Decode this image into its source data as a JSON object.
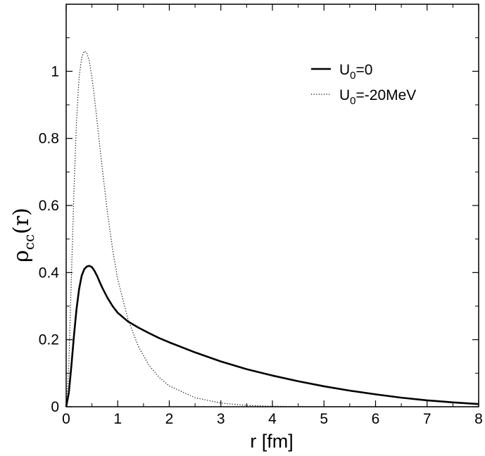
{
  "chart_data": {
    "type": "line",
    "xlabel": "r [fm]",
    "ylabel": {
      "main": "ρ",
      "sub": "cc",
      "arg": "(r)"
    },
    "xlim": [
      0,
      8
    ],
    "ylim": [
      0,
      1.2
    ],
    "xticks": [
      0,
      1,
      2,
      3,
      4,
      5,
      6,
      7,
      8
    ],
    "yticks": [
      0,
      0.2,
      0.4,
      0.6,
      0.8,
      1
    ],
    "ytick_labels": [
      "0",
      "0.2",
      "0.4",
      "0.6",
      "0.8",
      "1"
    ],
    "grid": false,
    "legend_position": "top-right",
    "series": [
      {
        "name": "U0=0",
        "legend": {
          "main": "U",
          "sub": "0",
          "rest": "=0"
        },
        "style": "solid",
        "color": "#000000",
        "x": [
          0,
          0.05,
          0.1,
          0.15,
          0.2,
          0.25,
          0.3,
          0.35,
          0.4,
          0.45,
          0.5,
          0.55,
          0.6,
          0.65,
          0.7,
          0.8,
          0.9,
          1.0,
          1.2,
          1.4,
          1.6,
          1.8,
          2.0,
          2.5,
          3.0,
          3.5,
          4.0,
          4.5,
          5.0,
          5.5,
          6.0,
          6.5,
          7.0,
          7.5,
          8.0
        ],
        "y": [
          0,
          0.04,
          0.12,
          0.21,
          0.29,
          0.35,
          0.39,
          0.41,
          0.418,
          0.42,
          0.416,
          0.405,
          0.39,
          0.372,
          0.355,
          0.325,
          0.3,
          0.28,
          0.254,
          0.236,
          0.22,
          0.205,
          0.192,
          0.162,
          0.135,
          0.112,
          0.093,
          0.076,
          0.061,
          0.048,
          0.037,
          0.027,
          0.019,
          0.013,
          0.008
        ]
      },
      {
        "name": "U0=-20MeV",
        "legend": {
          "main": "U",
          "sub": "0",
          "rest": "=-20MeV"
        },
        "style": "dotted",
        "color": "#000000",
        "x": [
          0,
          0.05,
          0.1,
          0.15,
          0.2,
          0.25,
          0.3,
          0.35,
          0.4,
          0.45,
          0.5,
          0.55,
          0.6,
          0.7,
          0.8,
          0.9,
          1.0,
          1.2,
          1.4,
          1.6,
          1.8,
          2.0,
          2.5,
          3.0,
          3.5,
          4.0,
          4.5,
          5.0,
          6.0,
          8.0
        ],
        "y": [
          0,
          0.12,
          0.38,
          0.64,
          0.85,
          0.98,
          1.04,
          1.06,
          1.055,
          1.03,
          0.98,
          0.92,
          0.85,
          0.71,
          0.58,
          0.47,
          0.38,
          0.26,
          0.18,
          0.125,
          0.088,
          0.062,
          0.027,
          0.011,
          0.004,
          0.0015,
          0.0005,
          0.0002,
          0,
          0
        ]
      }
    ]
  }
}
